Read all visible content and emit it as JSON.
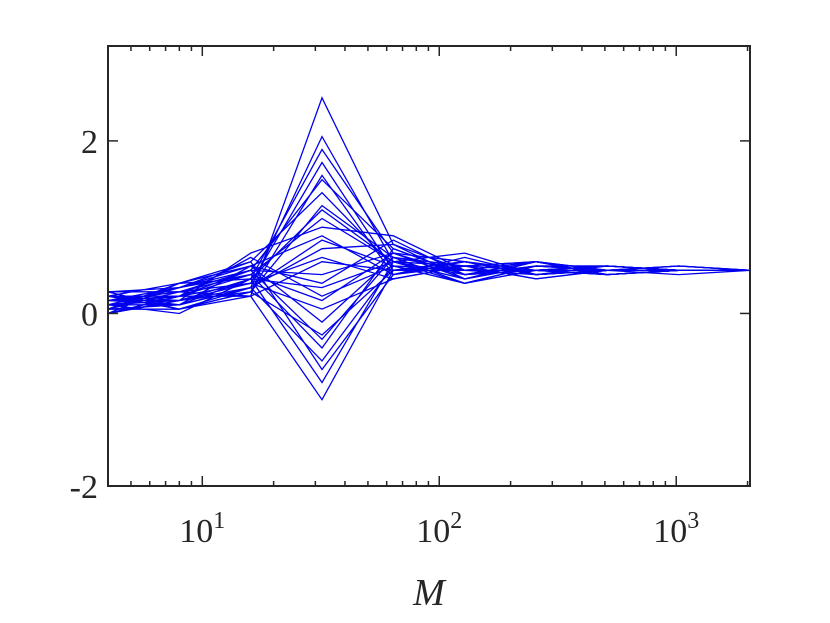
{
  "chart_data": {
    "type": "line",
    "title": "",
    "xlabel": "M",
    "ylabel": "",
    "x_scale": "log",
    "xlim": [
      4,
      2048
    ],
    "ylim": [
      -2,
      3.1
    ],
    "x_ticks": [
      {
        "value": 10,
        "base": "10",
        "exp": "1"
      },
      {
        "value": 100,
        "base": "10",
        "exp": "2"
      },
      {
        "value": 1000,
        "base": "10",
        "exp": "3"
      }
    ],
    "y_ticks": [
      {
        "value": -2,
        "label": "-2"
      },
      {
        "value": 0,
        "label": "0"
      },
      {
        "value": 2,
        "label": "2"
      }
    ],
    "grid": false,
    "legend": "none",
    "line_color": "#0000ee",
    "x": [
      4,
      8,
      16,
      32,
      64,
      128,
      256,
      512,
      1024,
      2048
    ],
    "series": [
      {
        "values": [
          0.05,
          0.05,
          0.2,
          2.5,
          0.8,
          0.5,
          0.5,
          0.5,
          0.5,
          0.5
        ]
      },
      {
        "values": [
          0.1,
          0.15,
          0.3,
          2.05,
          0.6,
          0.55,
          0.5,
          0.5,
          0.5,
          0.5
        ]
      },
      {
        "values": [
          0.2,
          0.1,
          0.4,
          1.9,
          0.7,
          0.4,
          0.55,
          0.5,
          0.5,
          0.5
        ]
      },
      {
        "values": [
          0.0,
          0.2,
          0.35,
          1.75,
          0.5,
          0.6,
          0.45,
          0.55,
          0.5,
          0.5
        ]
      },
      {
        "values": [
          0.15,
          0.25,
          0.5,
          1.55,
          0.75,
          0.45,
          0.5,
          0.5,
          0.55,
          0.5
        ]
      },
      {
        "values": [
          0.05,
          0.3,
          0.6,
          1.4,
          0.55,
          0.5,
          0.6,
          0.45,
          0.5,
          0.5
        ]
      },
      {
        "values": [
          0.25,
          0.05,
          0.25,
          1.25,
          0.65,
          0.55,
          0.4,
          0.5,
          0.5,
          0.5
        ]
      },
      {
        "values": [
          0.1,
          0.2,
          0.45,
          1.1,
          0.6,
          0.35,
          0.55,
          0.55,
          0.5,
          0.5
        ]
      },
      {
        "values": [
          0.2,
          0.15,
          0.7,
          1.0,
          0.9,
          0.5,
          0.5,
          0.45,
          0.5,
          0.5
        ]
      },
      {
        "values": [
          0.0,
          0.35,
          0.55,
          0.9,
          0.45,
          0.6,
          0.45,
          0.5,
          0.5,
          0.5
        ]
      },
      {
        "values": [
          0.15,
          0.1,
          0.3,
          0.75,
          0.8,
          0.4,
          0.6,
          0.5,
          0.5,
          0.5
        ]
      },
      {
        "values": [
          0.05,
          0.25,
          0.2,
          0.6,
          0.5,
          0.55,
          0.5,
          0.55,
          0.5,
          0.5
        ]
      },
      {
        "values": [
          0.25,
          0.3,
          0.5,
          0.45,
          0.7,
          0.45,
          0.55,
          0.5,
          0.45,
          0.5
        ]
      },
      {
        "values": [
          0.1,
          0.0,
          0.4,
          0.3,
          0.6,
          0.7,
          0.45,
          0.5,
          0.5,
          0.5
        ]
      },
      {
        "values": [
          0.2,
          0.2,
          0.65,
          0.2,
          0.55,
          0.5,
          0.5,
          0.45,
          0.5,
          0.5
        ]
      },
      {
        "values": [
          0.0,
          0.15,
          0.35,
          0.05,
          0.4,
          0.55,
          0.6,
          0.5,
          0.55,
          0.5
        ]
      },
      {
        "values": [
          0.15,
          0.3,
          0.55,
          -0.1,
          0.65,
          0.35,
          0.5,
          0.55,
          0.5,
          0.5
        ]
      },
      {
        "values": [
          0.05,
          0.05,
          0.25,
          -0.25,
          0.5,
          0.6,
          0.45,
          0.5,
          0.5,
          0.5
        ]
      },
      {
        "values": [
          0.25,
          0.25,
          0.45,
          -0.4,
          0.75,
          0.45,
          0.55,
          0.5,
          0.5,
          0.5
        ]
      },
      {
        "values": [
          0.1,
          0.1,
          0.3,
          -0.55,
          0.55,
          0.5,
          0.5,
          0.45,
          0.5,
          0.5
        ]
      },
      {
        "values": [
          0.2,
          0.35,
          0.6,
          -0.65,
          0.45,
          0.65,
          0.45,
          0.5,
          0.5,
          0.5
        ]
      },
      {
        "values": [
          0.0,
          0.15,
          0.4,
          -0.8,
          0.6,
          0.4,
          0.55,
          0.55,
          0.5,
          0.5
        ]
      },
      {
        "values": [
          0.15,
          0.2,
          0.2,
          -1.0,
          0.5,
          0.5,
          0.5,
          0.5,
          0.5,
          0.5
        ]
      },
      {
        "values": [
          0.05,
          0.1,
          0.55,
          0.35,
          0.85,
          0.45,
          0.6,
          0.45,
          0.5,
          0.5
        ]
      },
      {
        "values": [
          0.25,
          0.25,
          0.35,
          0.65,
          0.4,
          0.55,
          0.4,
          0.5,
          0.55,
          0.5
        ]
      },
      {
        "values": [
          0.1,
          0.3,
          0.45,
          0.15,
          0.7,
          0.6,
          0.5,
          0.55,
          0.5,
          0.5
        ]
      },
      {
        "values": [
          0.2,
          0.05,
          0.3,
          0.85,
          0.55,
          0.35,
          0.55,
          0.5,
          0.5,
          0.5
        ]
      },
      {
        "values": [
          0.0,
          0.2,
          0.5,
          -0.3,
          0.65,
          0.5,
          0.45,
          0.5,
          0.5,
          0.5
        ]
      },
      {
        "values": [
          0.15,
          0.15,
          0.25,
          1.6,
          0.45,
          0.55,
          0.6,
          0.45,
          0.5,
          0.5
        ]
      },
      {
        "values": [
          0.05,
          0.35,
          0.4,
          1.2,
          0.6,
          0.45,
          0.5,
          0.55,
          0.5,
          0.5
        ]
      }
    ]
  }
}
